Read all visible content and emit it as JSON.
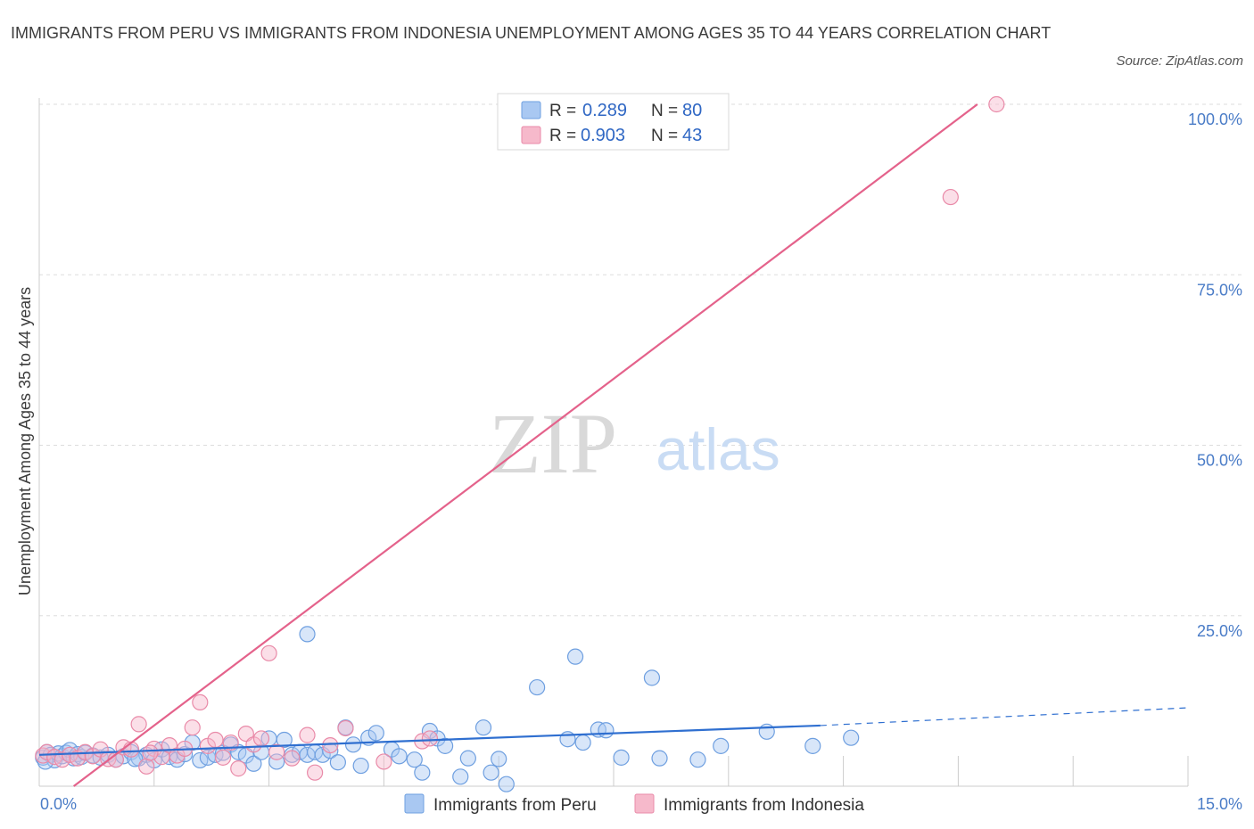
{
  "header": {
    "title": "IMMIGRANTS FROM PERU VS IMMIGRANTS FROM INDONESIA UNEMPLOYMENT AMONG AGES 35 TO 44 YEARS CORRELATION CHART",
    "source": "Source: ZipAtlas.com"
  },
  "watermark": {
    "zip": "ZIP",
    "atlas": "atlas"
  },
  "legend": {
    "r_label": "R =",
    "n_label": "N =",
    "peru": {
      "r": "0.289",
      "n": "80"
    },
    "indonesia": {
      "r": "0.903",
      "n": "43"
    }
  },
  "colors": {
    "peru_fill": "#a9c8f2",
    "peru_stroke": "#6e9fe0",
    "peru_line": "#2f6fd0",
    "indonesia_fill": "#f6b9cb",
    "indonesia_stroke": "#e98aa8",
    "indonesia_line": "#e4628b",
    "tick_text": "#4a7cc7"
  },
  "chart_data": {
    "type": "scatter",
    "title": "IMMIGRANTS FROM PERU VS IMMIGRANTS FROM INDONESIA UNEMPLOYMENT AMONG AGES 35 TO 44 YEARS CORRELATION CHART",
    "xlabel": "",
    "ylabel": "Unemployment Among Ages 35 to 44 years",
    "xlim": [
      0,
      15
    ],
    "ylim": [
      0,
      100
    ],
    "x_tick_labels": [
      "0.0%",
      "15.0%"
    ],
    "y_tick_labels": [
      "25.0%",
      "50.0%",
      "75.0%",
      "100.0%"
    ],
    "y_ticks": [
      25,
      50,
      75,
      100
    ],
    "legend_position": "top-center",
    "series": [
      {
        "name": "Immigrants from Peru",
        "r": 0.289,
        "n": 80,
        "trend": {
          "x0": 0.0,
          "y0": 4.6,
          "x1": 10.2,
          "y1": 8.9,
          "dash_x_end": 15.0,
          "dash_y_end": 11.5
        },
        "points": [
          [
            0.05,
            4.2
          ],
          [
            0.1,
            5.0
          ],
          [
            0.15,
            4.6
          ],
          [
            0.2,
            3.8
          ],
          [
            0.25,
            4.8
          ],
          [
            0.3,
            4.4
          ],
          [
            0.35,
            4.9
          ],
          [
            0.4,
            5.3
          ],
          [
            0.45,
            4.1
          ],
          [
            0.5,
            4.7
          ],
          [
            0.55,
            4.3
          ],
          [
            0.6,
            4.9
          ],
          [
            0.7,
            4.5
          ],
          [
            0.8,
            4.2
          ],
          [
            0.9,
            4.6
          ],
          [
            1.0,
            3.9
          ],
          [
            1.1,
            4.4
          ],
          [
            1.2,
            5.0
          ],
          [
            1.3,
            4.1
          ],
          [
            1.4,
            4.6
          ],
          [
            1.5,
            3.8
          ],
          [
            1.6,
            5.4
          ],
          [
            1.7,
            4.3
          ],
          [
            1.8,
            3.9
          ],
          [
            1.9,
            4.7
          ],
          [
            2.0,
            6.4
          ],
          [
            2.1,
            3.8
          ],
          [
            2.2,
            4.2
          ],
          [
            2.3,
            4.6
          ],
          [
            2.4,
            4.9
          ],
          [
            2.5,
            6.1
          ],
          [
            2.6,
            5.0
          ],
          [
            2.7,
            4.5
          ],
          [
            2.8,
            3.3
          ],
          [
            2.9,
            5.0
          ],
          [
            3.0,
            7.0
          ],
          [
            3.1,
            3.6
          ],
          [
            3.2,
            6.8
          ],
          [
            3.3,
            4.6
          ],
          [
            3.4,
            5.0
          ],
          [
            3.5,
            4.6
          ],
          [
            3.6,
            5.0
          ],
          [
            3.7,
            4.6
          ],
          [
            3.8,
            5.2
          ],
          [
            3.9,
            3.5
          ],
          [
            4.0,
            8.6
          ],
          [
            4.1,
            6.1
          ],
          [
            4.2,
            3.0
          ],
          [
            4.3,
            7.1
          ],
          [
            4.4,
            7.8
          ],
          [
            4.6,
            5.4
          ],
          [
            4.7,
            4.4
          ],
          [
            4.9,
            3.9
          ],
          [
            5.0,
            2.0
          ],
          [
            5.1,
            8.1
          ],
          [
            5.2,
            7.0
          ],
          [
            5.3,
            5.9
          ],
          [
            5.5,
            1.4
          ],
          [
            5.6,
            4.1
          ],
          [
            5.8,
            8.6
          ],
          [
            5.9,
            2.0
          ],
          [
            6.0,
            4.0
          ],
          [
            6.1,
            0.3
          ],
          [
            6.5,
            14.5
          ],
          [
            6.9,
            6.9
          ],
          [
            7.0,
            19.0
          ],
          [
            7.1,
            6.4
          ],
          [
            7.3,
            8.3
          ],
          [
            7.6,
            4.2
          ],
          [
            7.4,
            8.2
          ],
          [
            8.0,
            15.9
          ],
          [
            8.1,
            4.1
          ],
          [
            8.6,
            3.9
          ],
          [
            8.9,
            5.9
          ],
          [
            9.5,
            8.0
          ],
          [
            10.1,
            5.9
          ],
          [
            10.6,
            7.1
          ],
          [
            3.5,
            22.3
          ],
          [
            0.08,
            3.6
          ],
          [
            1.25,
            4.0
          ]
        ]
      },
      {
        "name": "Immigrants from Indonesia",
        "r": 0.903,
        "n": 43,
        "trend": {
          "x0": 0.45,
          "y0": 0.0,
          "x1": 12.25,
          "y1": 100.0
        },
        "points": [
          [
            0.05,
            4.5
          ],
          [
            0.1,
            5.0
          ],
          [
            0.2,
            4.3
          ],
          [
            0.3,
            3.9
          ],
          [
            0.4,
            4.6
          ],
          [
            0.5,
            4.1
          ],
          [
            0.6,
            5.0
          ],
          [
            0.7,
            4.4
          ],
          [
            0.8,
            5.4
          ],
          [
            0.9,
            4.0
          ],
          [
            1.0,
            3.9
          ],
          [
            1.1,
            5.7
          ],
          [
            1.2,
            5.4
          ],
          [
            1.3,
            9.1
          ],
          [
            1.4,
            2.9
          ],
          [
            1.5,
            5.5
          ],
          [
            1.6,
            4.3
          ],
          [
            1.7,
            6.0
          ],
          [
            1.8,
            4.5
          ],
          [
            1.9,
            5.5
          ],
          [
            2.0,
            8.6
          ],
          [
            2.1,
            12.3
          ],
          [
            2.2,
            5.9
          ],
          [
            2.3,
            6.8
          ],
          [
            2.4,
            4.2
          ],
          [
            2.5,
            6.4
          ],
          [
            2.6,
            2.6
          ],
          [
            2.7,
            7.7
          ],
          [
            2.8,
            6.1
          ],
          [
            2.9,
            7.0
          ],
          [
            3.0,
            19.5
          ],
          [
            3.1,
            5.0
          ],
          [
            3.3,
            4.1
          ],
          [
            3.5,
            7.5
          ],
          [
            3.6,
            2.0
          ],
          [
            3.8,
            6.0
          ],
          [
            4.0,
            8.5
          ],
          [
            4.5,
            3.6
          ],
          [
            5.0,
            6.6
          ],
          [
            5.1,
            7.0
          ],
          [
            1.45,
            4.9
          ],
          [
            12.5,
            100.0
          ],
          [
            11.9,
            86.4
          ]
        ]
      }
    ]
  },
  "bottom_legend": {
    "peru_label": "Immigrants from Peru",
    "indonesia_label": "Immigrants from Indonesia"
  }
}
